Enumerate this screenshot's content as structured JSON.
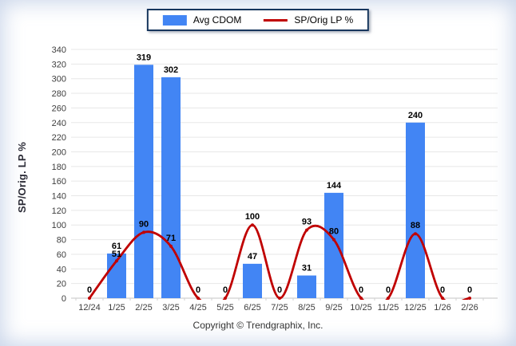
{
  "legend": {
    "bar_label": "Avg CDOM",
    "line_label": "SP/Orig LP %"
  },
  "footer": {
    "copyright": "Copyright © Trendgraphix, Inc."
  },
  "colors": {
    "bar": "#4285f4",
    "line": "#c00000",
    "legend_border": "#17365d"
  },
  "chart_data": {
    "type": "bar",
    "subtype": "bar+line combo",
    "title": "",
    "xlabel": "",
    "ylabel": "SP/Orig. LP %",
    "ylim": [
      0,
      340
    ],
    "ytick_step": 20,
    "grid": "horizontal",
    "legend_position": "top-center",
    "categories": [
      "12/24",
      "1/25",
      "2/25",
      "3/25",
      "4/25",
      "5/25",
      "6/25",
      "7/25",
      "8/25",
      "9/25",
      "10/25",
      "11/25",
      "12/25",
      "1/26",
      "2/26"
    ],
    "series": [
      {
        "name": "Avg CDOM",
        "type": "bar",
        "color": "#4285f4",
        "values": [
          0,
          61,
          319,
          302,
          0,
          0,
          47,
          0,
          31,
          144,
          0,
          0,
          240,
          0,
          0
        ]
      },
      {
        "name": "SP/Orig LP %",
        "type": "line",
        "color": "#c00000",
        "values": [
          0,
          51,
          90,
          71,
          0,
          0,
          100,
          0,
          93,
          80,
          0,
          0,
          88,
          0,
          0
        ]
      }
    ]
  }
}
